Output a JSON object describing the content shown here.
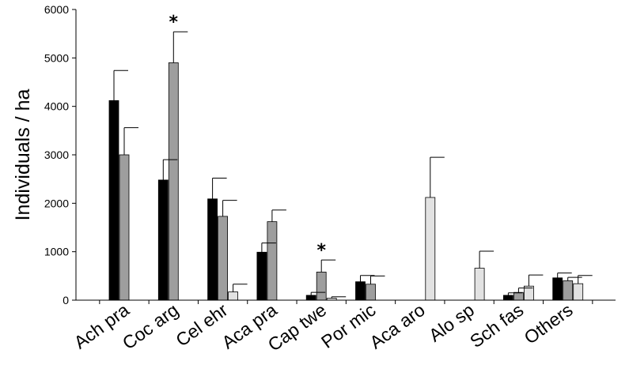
{
  "chart_data": {
    "type": "bar",
    "ylabel": "Individuals / ha",
    "xlabel": "",
    "ylim": [
      0,
      6000
    ],
    "yticks": [
      0,
      1000,
      2000,
      3000,
      4000,
      5000,
      6000
    ],
    "categories": [
      "Ach pra",
      "Coc arg",
      "Cel ehr",
      "Aca pra",
      "Cap twe",
      "Por mic",
      "Aca aro",
      "Alo sp",
      "Sch fas",
      "Others"
    ],
    "series": [
      {
        "color": "#000000",
        "values": [
          4120,
          2480,
          2090,
          990,
          100,
          380,
          0,
          0,
          100,
          460
        ],
        "errors": [
          620,
          420,
          430,
          190,
          60,
          130,
          0,
          0,
          50,
          100
        ]
      },
      {
        "color": "#9e9e9e",
        "values": [
          3000,
          4900,
          1730,
          1620,
          580,
          330,
          0,
          0,
          160,
          400
        ],
        "errors": [
          560,
          640,
          330,
          240,
          250,
          170,
          0,
          0,
          90,
          70
        ]
      },
      {
        "color": "#e2e2e2",
        "values": [
          0,
          0,
          170,
          0,
          40,
          0,
          2120,
          660,
          290,
          340
        ],
        "errors": [
          0,
          0,
          160,
          0,
          30,
          0,
          830,
          350,
          230,
          170
        ]
      }
    ],
    "annotations": [
      {
        "category": "Coc arg",
        "series_index": 1,
        "text": "*"
      },
      {
        "category": "Cap twe",
        "series_index": 1,
        "text": "*"
      }
    ]
  }
}
